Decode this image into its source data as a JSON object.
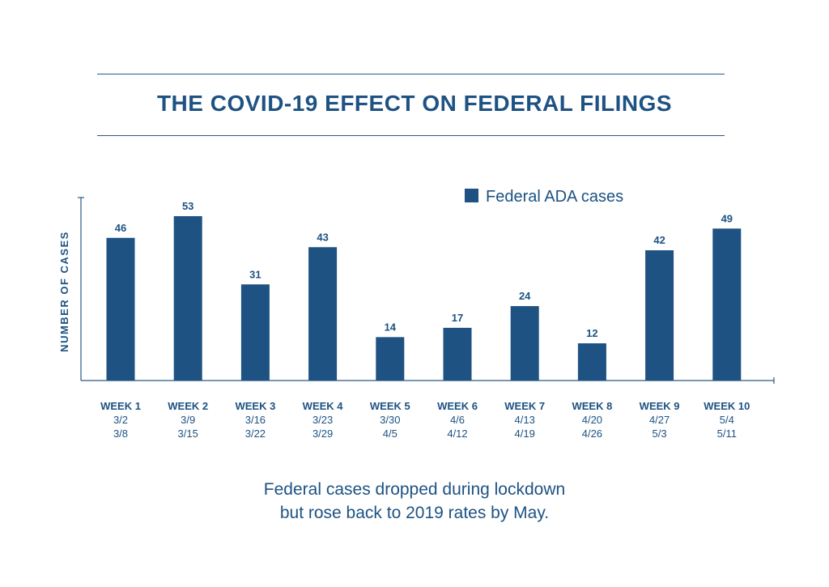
{
  "colors": {
    "bar": "#1d5283",
    "text": "#1d5283",
    "rule": "#2a5a86"
  },
  "caption": {
    "line1": "Federal cases dropped during lockdown",
    "line2": "but rose back to 2019 rates by May."
  },
  "chart_data": {
    "type": "bar",
    "title": "THE COVID-19 EFFECT ON FEDERAL FILINGS",
    "ylabel": "NUMBER OF CASES",
    "xlabel": "",
    "ylim": [
      0,
      59
    ],
    "legend": "top-right",
    "grid": false,
    "categories": [
      {
        "week": "WEEK 1",
        "start": "3/2",
        "end": "3/8"
      },
      {
        "week": "WEEK 2",
        "start": "3/9",
        "end": "3/15"
      },
      {
        "week": "WEEK 3",
        "start": "3/16",
        "end": "3/22"
      },
      {
        "week": "WEEK 4",
        "start": "3/23",
        "end": "3/29"
      },
      {
        "week": "WEEK 5",
        "start": "3/30",
        "end": "4/5"
      },
      {
        "week": "WEEK 6",
        "start": "4/6",
        "end": "4/12"
      },
      {
        "week": "WEEK 7",
        "start": "4/13",
        "end": "4/19"
      },
      {
        "week": "WEEK 8",
        "start": "4/20",
        "end": "4/26"
      },
      {
        "week": "WEEK 9",
        "start": "4/27",
        "end": "5/3"
      },
      {
        "week": "WEEK 10",
        "start": "5/4",
        "end": "5/11"
      }
    ],
    "series": [
      {
        "name": "Federal ADA cases",
        "values": [
          46,
          53,
          31,
          43,
          14,
          17,
          24,
          12,
          42,
          49
        ]
      }
    ]
  }
}
